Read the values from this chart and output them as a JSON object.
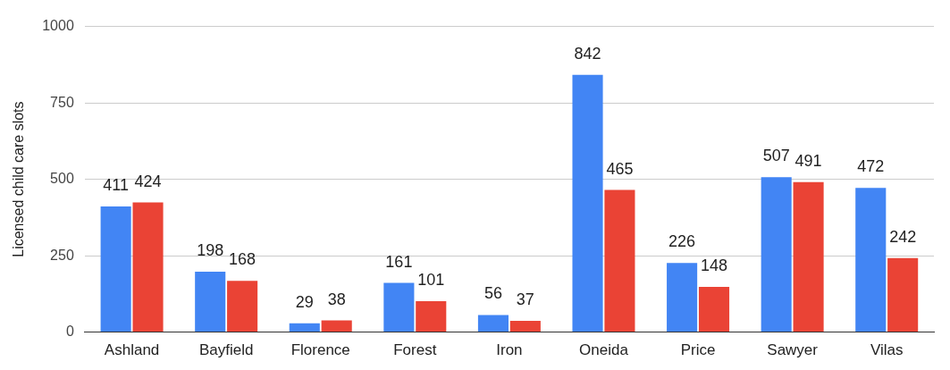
{
  "chart_data": {
    "type": "bar",
    "ylabel": "Licensed child care slots",
    "categories": [
      "Ashland",
      "Bayfield",
      "Florence",
      "Forest",
      "Iron",
      "Oneida",
      "Price",
      "Sawyer",
      "Vilas"
    ],
    "series": [
      {
        "color": "#4285f4",
        "values": [
          411,
          198,
          29,
          161,
          56,
          842,
          226,
          507,
          472
        ]
      },
      {
        "color": "#ea4335",
        "values": [
          424,
          168,
          38,
          101,
          37,
          465,
          148,
          491,
          242
        ]
      }
    ],
    "ylim": [
      0,
      1000
    ],
    "yticks": [
      0,
      250,
      500,
      750,
      1000
    ],
    "grid": "y",
    "legend": false,
    "data_labels": true
  }
}
